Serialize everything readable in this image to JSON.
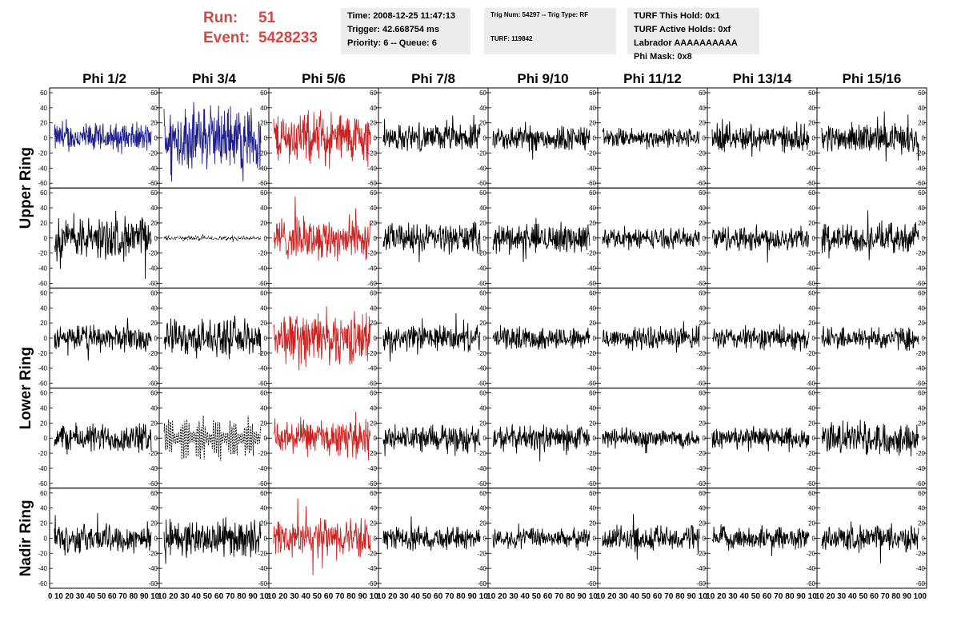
{
  "header": {
    "run_label": "Run:",
    "run_value": "51",
    "event_label": "Event:",
    "event_value": "5428233",
    "box1": [
      "Time: 2008-12-25 11:47:13",
      "Trigger: 42.668754 ms",
      "Priority: 6 -- Queue: 6"
    ],
    "box2": [
      "Trig Num: 54297 -- Trig Type: RF",
      "TURF: 119842"
    ],
    "box3": [
      "TURF This Hold: 0x1",
      "TURF Active Holds: 0xf",
      "Labrador AAAAAAAAAA",
      "Phi Mask: 0x8"
    ]
  },
  "colors": {
    "accent": "#d04a43",
    "blue": "#1f1f8f",
    "red": "#cc2222",
    "black": "#000000",
    "box_bg": "#ececec"
  },
  "chart_data": {
    "type": "line",
    "columns": [
      "Phi 1/2",
      "Phi 3/4",
      "Phi 5/6",
      "Phi 7/8",
      "Phi 9/10",
      "Phi 11/12",
      "Phi 13/14",
      "Phi 15/16"
    ],
    "row_labels": [
      "Upper Ring",
      "Lower Ring",
      "Nadir Ring"
    ],
    "rows": 5,
    "ylim": [
      -60,
      60
    ],
    "yticks": [
      "60",
      "40",
      "20",
      "0",
      "-20",
      "-40",
      "-60"
    ],
    "xlim": [
      0,
      100
    ],
    "xticks": [
      "0",
      "10",
      "20",
      "30",
      "40",
      "50",
      "60",
      "70",
      "80",
      "90",
      "100"
    ],
    "xtick_label_strip": [
      "0 10 20 30 40 50 60 70 80 90 10",
      "10 20 30 40 50 60 70 80 90 10",
      "10 20 30 40 50 60 70 80 90 10",
      "10 20 30 40 50 60 70 80 90 10",
      "10 20 30 40 50 60 70 80 90 10",
      "10 20 30 40 50 60 70 80 90 10",
      "10 20 30 40 50 60 70 80 90 10",
      "10 20 30 40 50 60 70 80 90 100"
    ],
    "panels": [
      {
        "row": 0,
        "col": 0,
        "color": "blue",
        "amp": 18,
        "style": "solid"
      },
      {
        "row": 0,
        "col": 1,
        "color": "blue",
        "amp": 40,
        "style": "solid"
      },
      {
        "row": 0,
        "col": 2,
        "color": "red",
        "amp": 32,
        "style": "solid"
      },
      {
        "row": 0,
        "col": 3,
        "color": "black",
        "amp": 16,
        "style": "solid"
      },
      {
        "row": 0,
        "col": 4,
        "color": "black",
        "amp": 16,
        "style": "solid"
      },
      {
        "row": 0,
        "col": 5,
        "color": "black",
        "amp": 12,
        "style": "solid"
      },
      {
        "row": 0,
        "col": 6,
        "color": "black",
        "amp": 16,
        "style": "solid"
      },
      {
        "row": 0,
        "col": 7,
        "color": "black",
        "amp": 18,
        "style": "solid"
      },
      {
        "row": 1,
        "col": 0,
        "color": "black",
        "amp": 26,
        "style": "solid"
      },
      {
        "row": 1,
        "col": 1,
        "color": "black",
        "amp": 3,
        "style": "dashed"
      },
      {
        "row": 1,
        "col": 2,
        "color": "red",
        "amp": 26,
        "style": "solid"
      },
      {
        "row": 1,
        "col": 3,
        "color": "black",
        "amp": 18,
        "style": "solid"
      },
      {
        "row": 1,
        "col": 4,
        "color": "black",
        "amp": 18,
        "style": "solid"
      },
      {
        "row": 1,
        "col": 5,
        "color": "black",
        "amp": 12,
        "style": "solid"
      },
      {
        "row": 1,
        "col": 6,
        "color": "black",
        "amp": 16,
        "style": "solid"
      },
      {
        "row": 1,
        "col": 7,
        "color": "black",
        "amp": 18,
        "style": "solid"
      },
      {
        "row": 2,
        "col": 0,
        "color": "black",
        "amp": 16,
        "style": "solid"
      },
      {
        "row": 2,
        "col": 1,
        "color": "black",
        "amp": 22,
        "style": "solid"
      },
      {
        "row": 2,
        "col": 2,
        "color": "red",
        "amp": 32,
        "style": "solid"
      },
      {
        "row": 2,
        "col": 3,
        "color": "black",
        "amp": 16,
        "style": "solid"
      },
      {
        "row": 2,
        "col": 4,
        "color": "black",
        "amp": 14,
        "style": "solid"
      },
      {
        "row": 2,
        "col": 5,
        "color": "black",
        "amp": 14,
        "style": "solid"
      },
      {
        "row": 2,
        "col": 6,
        "color": "black",
        "amp": 14,
        "style": "solid"
      },
      {
        "row": 2,
        "col": 7,
        "color": "black",
        "amp": 14,
        "style": "solid"
      },
      {
        "row": 3,
        "col": 0,
        "color": "black",
        "amp": 18,
        "style": "solid"
      },
      {
        "row": 3,
        "col": 1,
        "color": "black",
        "amp": 28,
        "style": "dashed"
      },
      {
        "row": 3,
        "col": 2,
        "color": "red",
        "amp": 22,
        "style": "solid"
      },
      {
        "row": 3,
        "col": 3,
        "color": "black",
        "amp": 16,
        "style": "solid"
      },
      {
        "row": 3,
        "col": 4,
        "color": "black",
        "amp": 16,
        "style": "solid"
      },
      {
        "row": 3,
        "col": 5,
        "color": "black",
        "amp": 12,
        "style": "solid"
      },
      {
        "row": 3,
        "col": 6,
        "color": "black",
        "amp": 14,
        "style": "solid"
      },
      {
        "row": 3,
        "col": 7,
        "color": "black",
        "amp": 20,
        "style": "solid"
      },
      {
        "row": 4,
        "col": 0,
        "color": "black",
        "amp": 18,
        "style": "solid"
      },
      {
        "row": 4,
        "col": 1,
        "color": "black",
        "amp": 22,
        "style": "solid"
      },
      {
        "row": 4,
        "col": 2,
        "color": "red",
        "amp": 24,
        "style": "solid"
      },
      {
        "row": 4,
        "col": 3,
        "color": "black",
        "amp": 14,
        "style": "solid"
      },
      {
        "row": 4,
        "col": 4,
        "color": "black",
        "amp": 12,
        "style": "solid"
      },
      {
        "row": 4,
        "col": 5,
        "color": "black",
        "amp": 16,
        "style": "solid"
      },
      {
        "row": 4,
        "col": 6,
        "color": "black",
        "amp": 14,
        "style": "solid"
      },
      {
        "row": 4,
        "col": 7,
        "color": "black",
        "amp": 16,
        "style": "solid"
      }
    ]
  }
}
